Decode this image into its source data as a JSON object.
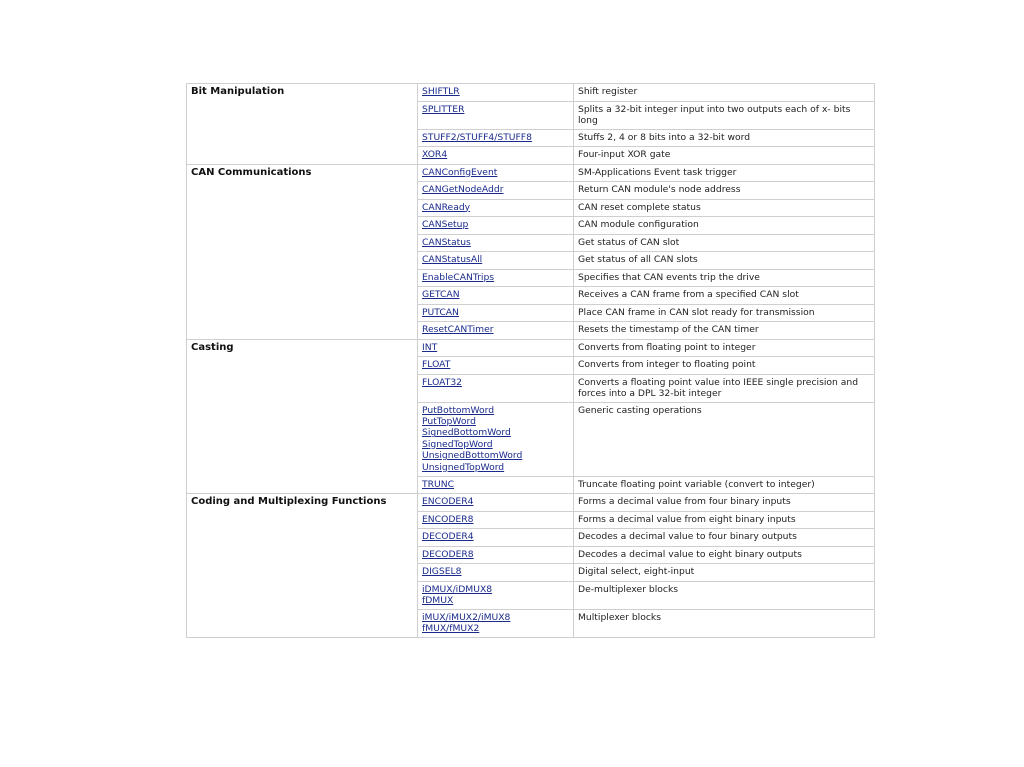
{
  "groups": [
    {
      "category": "Bit Manipulation",
      "rows": [
        {
          "links": [
            "SHIFTLR"
          ],
          "desc": "Shift register"
        },
        {
          "links": [
            "SPLITTER"
          ],
          "desc": "Splits a 32-bit integer input into two outputs each of x- bits long"
        },
        {
          "links": [
            "STUFF2/STUFF4/STUFF8"
          ],
          "desc": "Stuffs 2, 4 or 8 bits into a 32-bit word"
        },
        {
          "links": [
            "XOR4"
          ],
          "desc": "Four-input XOR gate"
        }
      ]
    },
    {
      "category": "CAN Communications",
      "rows": [
        {
          "links": [
            "CANConfigEvent"
          ],
          "desc": "SM-Applications Event task trigger"
        },
        {
          "links": [
            "CANGetNodeAddr"
          ],
          "desc": "Return CAN module's node address"
        },
        {
          "links": [
            "CANReady"
          ],
          "desc": "CAN reset complete status"
        },
        {
          "links": [
            "CANSetup"
          ],
          "desc": "CAN module configuration"
        },
        {
          "links": [
            "CANStatus"
          ],
          "desc": "Get status of CAN slot"
        },
        {
          "links": [
            "CANStatusAll"
          ],
          "desc": "Get status of all CAN slots"
        },
        {
          "links": [
            "EnableCANTrips"
          ],
          "desc": "Specifies that CAN events trip the drive"
        },
        {
          "links": [
            "GETCAN"
          ],
          "desc": "Receives a CAN frame from a specified CAN slot"
        },
        {
          "links": [
            "PUTCAN"
          ],
          "desc": "Place CAN frame in CAN slot ready for transmission"
        },
        {
          "links": [
            "ResetCANTimer"
          ],
          "desc": "Resets the timestamp of the CAN timer"
        }
      ]
    },
    {
      "category": "Casting",
      "rows": [
        {
          "links": [
            "INT"
          ],
          "desc": "Converts from floating point to integer"
        },
        {
          "links": [
            "FLOAT"
          ],
          "desc": "Converts from integer to floating point"
        },
        {
          "links": [
            "FLOAT32"
          ],
          "desc": "Converts a floating point value into IEEE single precision and forces into a DPL 32-bit integer"
        },
        {
          "links": [
            "PutBottomWord",
            "PutTopWord",
            "SignedBottomWord",
            "SignedTopWord",
            "UnsignedBottomWord",
            "UnsignedTopWord"
          ],
          "desc": "Generic casting operations"
        },
        {
          "links": [
            "TRUNC"
          ],
          "desc": "Truncate floating point variable (convert to integer)"
        }
      ]
    },
    {
      "category": "Coding and Multiplexing Functions",
      "rows": [
        {
          "links": [
            "ENCODER4"
          ],
          "desc": "Forms a decimal value from four binary inputs"
        },
        {
          "links": [
            "ENCODER8"
          ],
          "desc": "Forms a decimal value from eight binary inputs"
        },
        {
          "links": [
            "DECODER4"
          ],
          "desc": "Decodes a decimal value to four binary outputs"
        },
        {
          "links": [
            "DECODER8"
          ],
          "desc": "Decodes a decimal value to eight binary outputs"
        },
        {
          "links": [
            "DIGSEL8"
          ],
          "desc": "Digital select, eight-input"
        },
        {
          "links": [
            "iDMUX/iDMUX8",
            "fDMUX"
          ],
          "desc": "De-multiplexer blocks"
        },
        {
          "links": [
            "iMUX/iMUX2/iMUX8",
            "fMUX/fMUX2"
          ],
          "desc": "Multiplexer blocks"
        }
      ]
    }
  ],
  "colors": {
    "link": "#1a2a8c",
    "border": "#cfcfcf"
  }
}
